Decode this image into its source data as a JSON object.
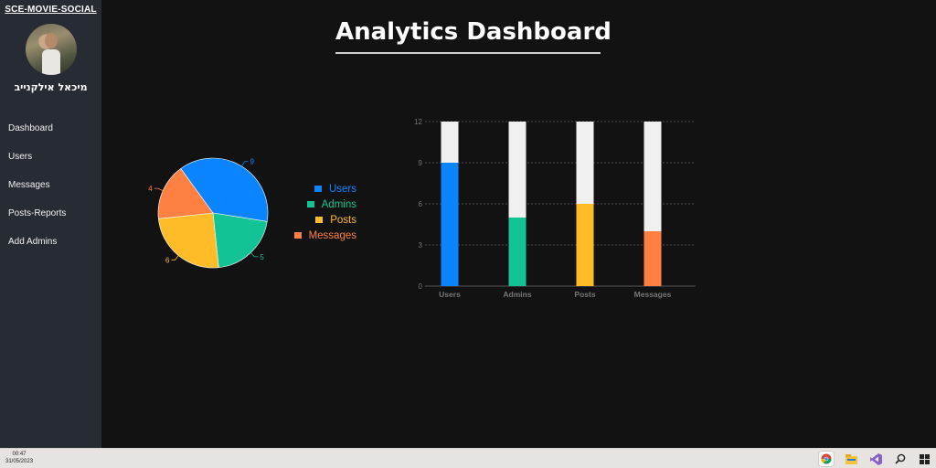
{
  "sidebar": {
    "brand": "SCE-MOVIE-SOCIAL",
    "username": "מיכאל אילקנייב",
    "items": [
      {
        "label": "Dashboard"
      },
      {
        "label": "Users"
      },
      {
        "label": "Messages"
      },
      {
        "label": "Posts-Reports"
      },
      {
        "label": "Add Admins"
      }
    ]
  },
  "main": {
    "title": "Analytics Dashboard"
  },
  "colors": {
    "users": "#0a84ff",
    "admins": "#12c495",
    "posts": "#ffbb28",
    "messages": "#ff8042",
    "bar_background": "#f0f0f0",
    "axis": "#777777"
  },
  "chart_data": [
    {
      "type": "pie",
      "categories": [
        "Users",
        "Admins",
        "Posts",
        "Messages"
      ],
      "values": [
        9,
        5,
        6,
        4
      ],
      "legend": "right"
    },
    {
      "type": "bar",
      "categories": [
        "Users",
        "Admins",
        "Posts",
        "Messages"
      ],
      "values": [
        9,
        5,
        6,
        4
      ],
      "background_max": 12,
      "ylim": [
        0,
        12
      ],
      "yticks": [
        "0",
        "3",
        "6",
        "9",
        "12"
      ],
      "grid": true
    }
  ],
  "taskbar": {
    "time": "00:47",
    "date": "31/05/2023",
    "icons": [
      "chrome-icon",
      "file-explorer-icon",
      "visual-studio-icon",
      "search-icon",
      "windows-start-icon"
    ]
  }
}
